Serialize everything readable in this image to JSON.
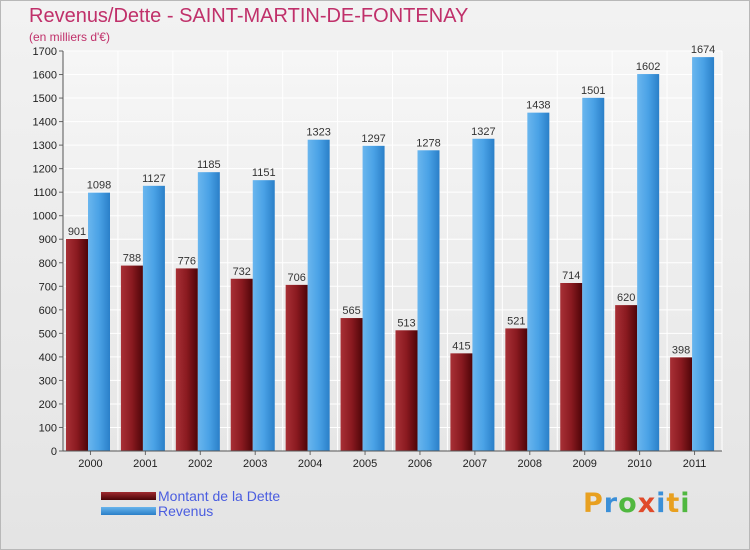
{
  "header": {
    "title": "Revenus/Dette - SAINT-MARTIN-DE-FONTENAY",
    "subtitle": "(en milliers d'€)"
  },
  "colors": {
    "dette": "#7a1418",
    "revenus": "#3a96df",
    "title": "#c0306a",
    "legend_text": "#4a5de0"
  },
  "chart_data": {
    "type": "bar",
    "title": "Revenus/Dette - SAINT-MARTIN-DE-FONTENAY",
    "subtitle": "(en milliers d'€)",
    "categories": [
      "2000",
      "2001",
      "2002",
      "2003",
      "2004",
      "2005",
      "2006",
      "2007",
      "2008",
      "2009",
      "2010",
      "2011"
    ],
    "series": [
      {
        "name": "Montant de la Dette",
        "values": [
          901,
          788,
          776,
          732,
          706,
          565,
          513,
          415,
          521,
          714,
          620,
          398
        ]
      },
      {
        "name": "Revenus",
        "values": [
          1098,
          1127,
          1185,
          1151,
          1323,
          1297,
          1278,
          1327,
          1438,
          1501,
          1602,
          1674
        ]
      }
    ],
    "ylim": [
      0,
      1700
    ],
    "yticks": [
      0,
      100,
      200,
      300,
      400,
      500,
      600,
      700,
      800,
      900,
      1000,
      1100,
      1200,
      1300,
      1400,
      1500,
      1600,
      1700
    ],
    "grid": true,
    "legend_position": "bottom-left"
  },
  "legend": {
    "items": [
      {
        "label": "Montant de la Dette"
      },
      {
        "label": "Revenus"
      }
    ]
  },
  "logo": {
    "text": "Proxiti",
    "letters": [
      {
        "ch": "P",
        "color": "#e8a020"
      },
      {
        "ch": "r",
        "color": "#3a8fd8"
      },
      {
        "ch": "o",
        "color": "#50b840"
      },
      {
        "ch": "x",
        "color": "#e04a2a"
      },
      {
        "ch": "i",
        "color": "#3a8fd8"
      },
      {
        "ch": "t",
        "color": "#e8a020"
      },
      {
        "ch": "i",
        "color": "#50b840"
      }
    ]
  }
}
